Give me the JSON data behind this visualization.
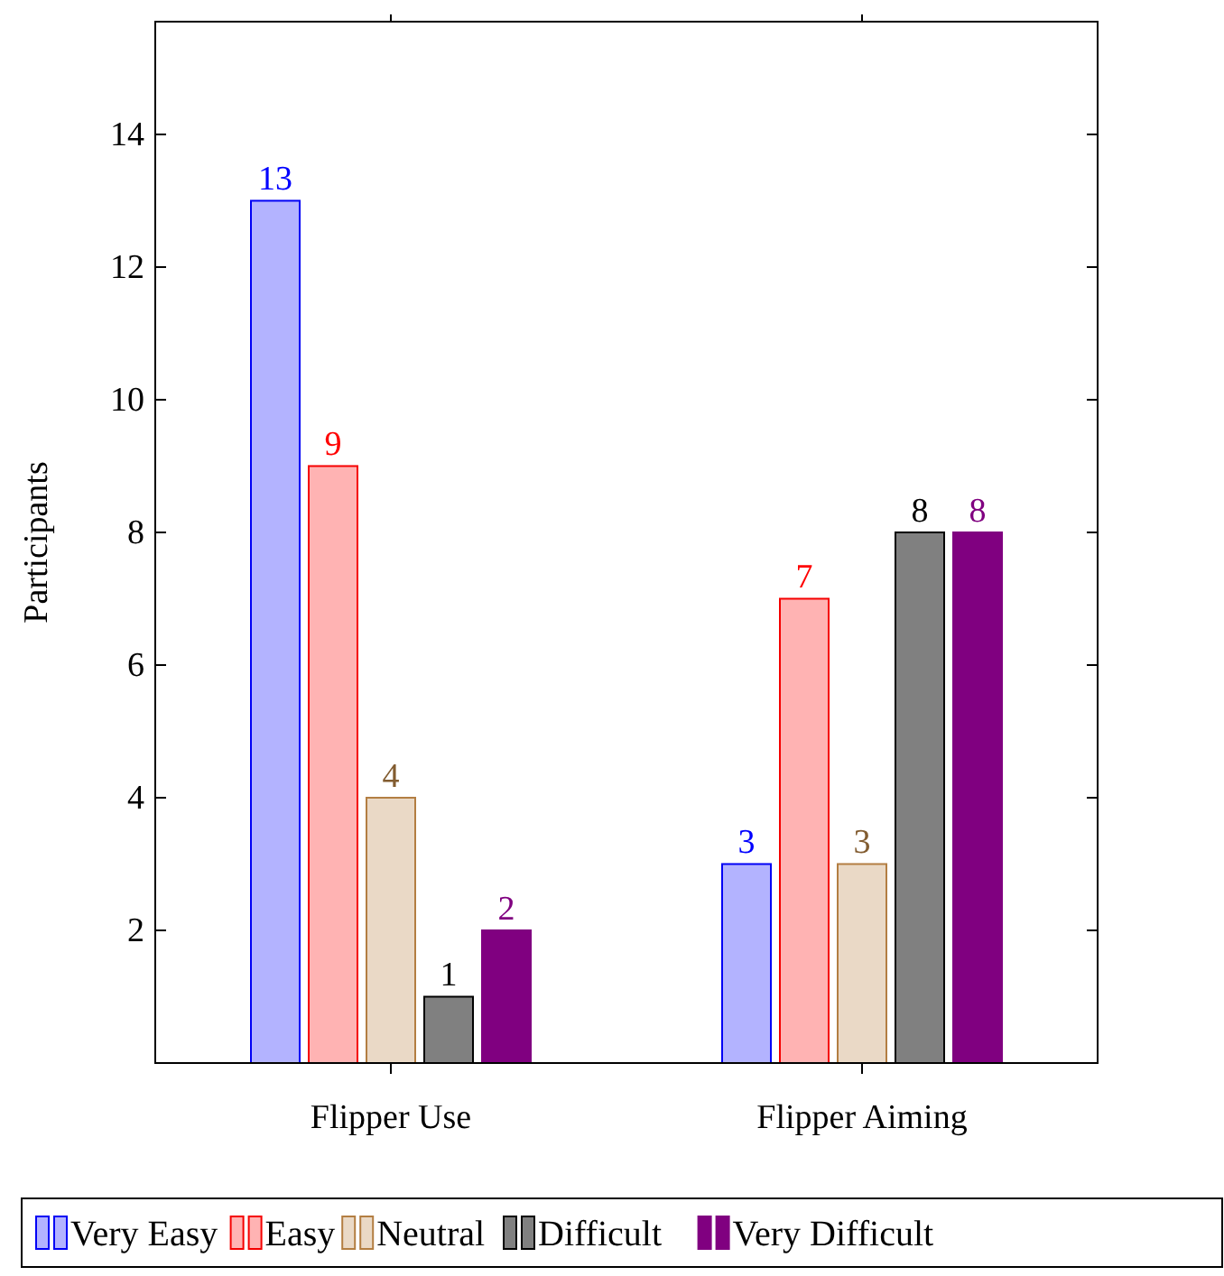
{
  "chart_data": {
    "type": "bar",
    "ylabel": "Participants",
    "categories": [
      "Flipper Use",
      "Flipper Aiming"
    ],
    "series": [
      {
        "name": "Very Easy",
        "color": "#b3b3ff",
        "values": [
          13,
          3
        ]
      },
      {
        "name": "Easy",
        "color": "#ffb3b3",
        "values": [
          9,
          7
        ]
      },
      {
        "name": "Neutral",
        "color": "#ead9c6",
        "values": [
          4,
          3
        ]
      },
      {
        "name": "Difficult",
        "color": "#808080",
        "values": [
          1,
          8
        ]
      },
      {
        "name": "Very Difficult",
        "color": "#800080",
        "values": [
          2,
          8
        ]
      }
    ],
    "ylim": [
      0,
      15.7
    ],
    "yticks": [
      2,
      4,
      6,
      8,
      10,
      12,
      14
    ],
    "data_labels": true,
    "legend": "bottom",
    "grid": false
  }
}
